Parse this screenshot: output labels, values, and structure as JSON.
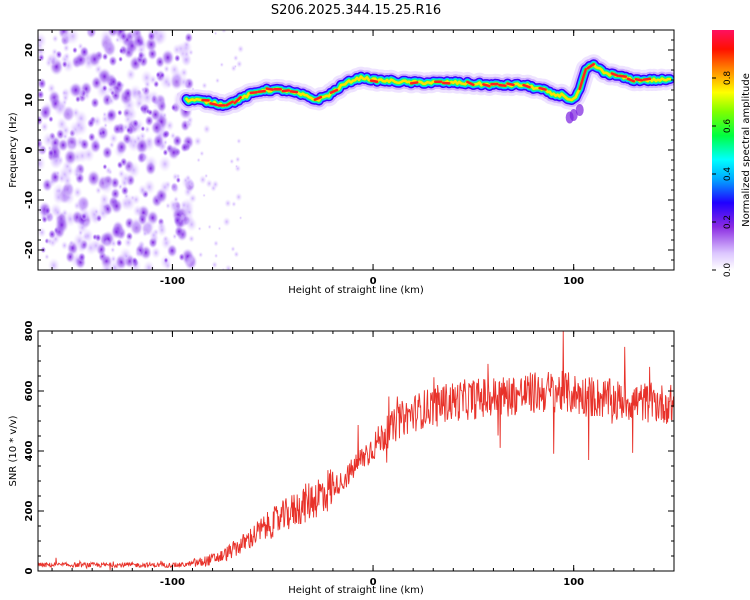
{
  "title": "S206.2025.344.15.25.R16",
  "chart_data": [
    {
      "type": "heatmap",
      "xlabel": "Height of straight line (km)",
      "ylabel": "Frequency (Hz)",
      "xlim": [
        -167,
        150
      ],
      "ylim": [
        -24,
        24
      ],
      "xticks": [
        -100,
        0,
        100
      ],
      "yticks": [
        -20,
        -10,
        0,
        10,
        20
      ],
      "colorbar": {
        "label": "Normalized spectral amplitude",
        "range": [
          0,
          1
        ],
        "ticks": [
          "0.0",
          "0.2",
          "0.4",
          "0.6",
          "0.8"
        ]
      },
      "ridge": {
        "x": [
          -93,
          -88,
          -80,
          -75,
          -70,
          -62,
          -55,
          -45,
          -35,
          -28,
          -22,
          -15,
          -10,
          -5,
          0,
          20,
          40,
          60,
          75,
          85,
          90,
          95,
          98,
          100,
          103,
          106,
          110,
          115,
          120,
          130,
          140,
          148
        ],
        "y": [
          10,
          10,
          9.5,
          9,
          9.5,
          11,
          12,
          12,
          11,
          10,
          11,
          13,
          14,
          14.5,
          14,
          13.5,
          13.5,
          13,
          13,
          12,
          11,
          11,
          10,
          10,
          12,
          16,
          17,
          15.5,
          15,
          14,
          14,
          14
        ]
      }
    },
    {
      "type": "line",
      "xlabel": "Height of straight line (km)",
      "ylabel": "SNR (10 * v/v)",
      "xlim": [
        -167,
        150
      ],
      "ylim": [
        0,
        800
      ],
      "xticks": [
        -100,
        0,
        100
      ],
      "yticks": [
        0,
        200,
        400,
        600,
        800
      ],
      "series": [
        {
          "name": "SNR",
          "color": "#e8322a",
          "x": [
            -167,
            -140,
            -110,
            -95,
            -85,
            -75,
            -65,
            -55,
            -45,
            -35,
            -25,
            -15,
            -5,
            5,
            15,
            25,
            35,
            45,
            60,
            75,
            90,
            100,
            110,
            120,
            130,
            140,
            150
          ],
          "y": [
            20,
            20,
            20,
            20,
            30,
            50,
            90,
            140,
            180,
            220,
            260,
            300,
            380,
            450,
            510,
            540,
            560,
            570,
            580,
            590,
            600,
            590,
            580,
            570,
            565,
            560,
            555
          ]
        }
      ]
    }
  ]
}
